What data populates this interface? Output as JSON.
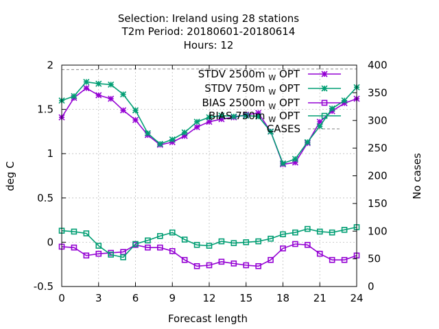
{
  "chart_data": {
    "type": "line",
    "title_lines": [
      "Selection: Ireland using    28 stations",
      "T2m   Period: 20180601-20180614",
      "Hours:  12"
    ],
    "xlabel": "Forecast length",
    "ylabel": "deg C",
    "y2label": "No cases",
    "xlim": [
      0,
      24
    ],
    "ylim": [
      -0.5,
      2
    ],
    "y2lim": [
      0,
      400
    ],
    "xticks": [
      "0",
      "3",
      "6",
      "9",
      "12",
      "15",
      "18",
      "21",
      "24"
    ],
    "yticks": [
      "-0.5",
      "0",
      "0.5",
      "1",
      "1.5",
      "2"
    ],
    "y2ticks": [
      "0",
      "50",
      "100",
      "150",
      "200",
      "250",
      "300",
      "350",
      "400"
    ],
    "grid": true,
    "legend_position": "top-right",
    "x": [
      0,
      1,
      2,
      3,
      4,
      5,
      6,
      7,
      8,
      9,
      10,
      11,
      12,
      13,
      14,
      15,
      16,
      17,
      18,
      19,
      20,
      21,
      22,
      23,
      24
    ],
    "series": [
      {
        "name": "STDV 2500m",
        "name_sub": "W",
        "name_tail": "OPT",
        "color": "#9400d3",
        "marker": "star",
        "axis": "y",
        "values": [
          1.41,
          1.63,
          1.74,
          1.66,
          1.62,
          1.49,
          1.38,
          1.21,
          1.1,
          1.13,
          1.2,
          1.3,
          1.36,
          1.39,
          1.41,
          1.44,
          1.46,
          1.25,
          0.88,
          0.9,
          1.12,
          1.36,
          1.48,
          1.57,
          1.62
        ]
      },
      {
        "name": "STDV 750m",
        "name_sub": "W",
        "name_tail": "OPT",
        "color": "#009e73",
        "marker": "star",
        "axis": "y",
        "values": [
          1.6,
          1.65,
          1.81,
          1.79,
          1.78,
          1.67,
          1.49,
          1.23,
          1.11,
          1.16,
          1.24,
          1.36,
          1.41,
          1.43,
          1.42,
          1.43,
          1.42,
          1.25,
          0.89,
          0.94,
          1.13,
          1.31,
          1.51,
          1.6,
          1.75
        ]
      },
      {
        "name": "BIAS 2500m",
        "name_sub": "W",
        "name_tail": "OPT",
        "color": "#9400d3",
        "marker": "square",
        "axis": "y",
        "values": [
          -0.05,
          -0.06,
          -0.15,
          -0.13,
          -0.12,
          -0.11,
          -0.03,
          -0.06,
          -0.06,
          -0.1,
          -0.2,
          -0.27,
          -0.26,
          -0.22,
          -0.24,
          -0.26,
          -0.27,
          -0.2,
          -0.07,
          -0.02,
          -0.03,
          -0.13,
          -0.2,
          -0.2,
          -0.15
        ]
      },
      {
        "name": "BIAS 750m",
        "name_sub": "W",
        "name_tail": "OPT",
        "color": "#009e73",
        "marker": "square",
        "axis": "y",
        "values": [
          0.13,
          0.12,
          0.1,
          -0.04,
          -0.14,
          -0.17,
          -0.02,
          0.02,
          0.07,
          0.11,
          0.03,
          -0.03,
          -0.04,
          0.01,
          -0.01,
          0.0,
          0.01,
          0.04,
          0.09,
          0.11,
          0.15,
          0.12,
          0.11,
          0.14,
          0.17
        ]
      },
      {
        "name": "CASES",
        "color": "#999999",
        "marker": "none",
        "dash": true,
        "axis": "y2",
        "values": [
          392,
          392,
          392,
          392,
          393,
          393,
          393,
          393,
          393,
          393,
          393,
          393,
          393,
          393,
          393,
          393,
          393,
          393,
          393,
          393,
          393,
          393,
          393,
          393,
          393
        ]
      }
    ]
  }
}
